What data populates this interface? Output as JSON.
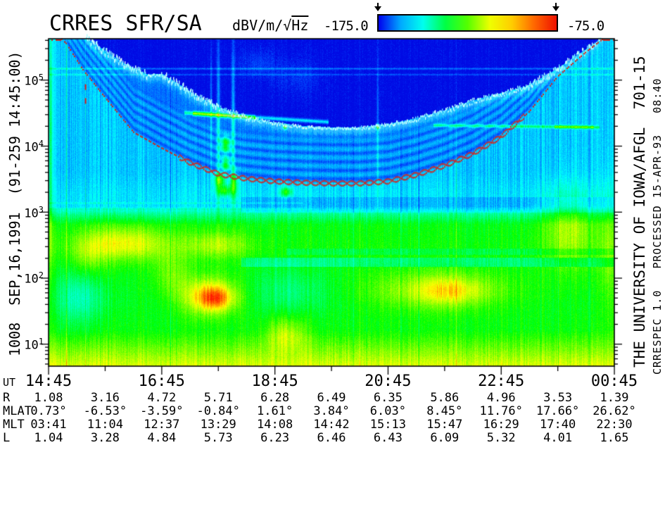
{
  "header": {
    "title": "CRRES SFR/SA",
    "units": {
      "prefix": "dBV/m/",
      "radical": "√",
      "radicand": "Hz"
    },
    "colorbar": {
      "min_label": "-175.0",
      "max_label": "-75.0"
    }
  },
  "side_labels": {
    "left": "1008  SEP,16,1991  (91-259 14:45:00)",
    "right_main": "THE UNIVERSITY OF IOWA/AFGL  701-15",
    "right_sub": "CRRESPEC 1.0   PROCESSED 15-APR-93   08:40"
  },
  "chart_data": {
    "type": "heatmap",
    "title": "CRRES SFR/SA",
    "colorbar": {
      "units": "dBV/m/√Hz",
      "min": -175.0,
      "max": -75.0,
      "gradient": [
        "#0000ee",
        "#00aaff",
        "#00ffee",
        "#00ff44",
        "#55ff00",
        "#eeff00",
        "#ffcc00",
        "#ff6600",
        "#ee1100"
      ]
    },
    "x_axis": {
      "label": "UT",
      "major_ticks": [
        "14:45",
        "16:45",
        "18:45",
        "20:45",
        "22:45",
        "00:45"
      ],
      "span_hours": 10,
      "minor_tick_hours": 1
    },
    "y_axis": {
      "base": "10",
      "scale": "log10",
      "decade_exponents": [
        1,
        2,
        3,
        4,
        5
      ],
      "log_range": [
        0.66,
        5.62
      ],
      "units": "Hz"
    },
    "ephemeris": {
      "rows": [
        {
          "label": "R",
          "values": [
            "1.08",
            "3.16",
            "4.72",
            "5.71",
            "6.28",
            "6.49",
            "6.35",
            "5.86",
            "4.96",
            "3.53",
            "1.39"
          ]
        },
        {
          "label": "MLAT",
          "values": [
            "0.73°",
            "-6.53°",
            "-3.59°",
            "-0.84°",
            "1.61°",
            "3.84°",
            "6.03°",
            "8.45°",
            "11.76°",
            "17.66°",
            "26.62°"
          ]
        },
        {
          "label": "MLT",
          "values": [
            "03:41",
            "11:04",
            "12:37",
            "13:29",
            "14:08",
            "14:42",
            "15:13",
            "15:47",
            "16:29",
            "17:40",
            "22:30"
          ]
        },
        {
          "label": "L",
          "values": [
            "1.04",
            "3.28",
            "4.84",
            "5.73",
            "6.23",
            "6.46",
            "6.43",
            "6.09",
            "5.32",
            "4.01",
            "1.65"
          ]
        }
      ]
    },
    "overlays": {
      "red_dotted_trace": {
        "color": "#d2251d",
        "style": "dotted-braid",
        "braid_t_range": [
          2.3,
          8.4
        ],
        "points_t_logf": [
          [
            0,
            5.8
          ],
          [
            0.3,
            5.55
          ],
          [
            0.6,
            5.15
          ],
          [
            1.0,
            4.72
          ],
          [
            1.5,
            4.2
          ],
          [
            2.0,
            3.96
          ],
          [
            2.5,
            3.74
          ],
          [
            3.0,
            3.57
          ],
          [
            3.5,
            3.5
          ],
          [
            4.0,
            3.46
          ],
          [
            4.5,
            3.44
          ],
          [
            5.0,
            3.43
          ],
          [
            5.5,
            3.43
          ],
          [
            6.0,
            3.46
          ],
          [
            6.5,
            3.56
          ],
          [
            7.0,
            3.7
          ],
          [
            7.5,
            3.88
          ],
          [
            8.0,
            4.14
          ],
          [
            8.5,
            4.52
          ],
          [
            9.0,
            5.05
          ],
          [
            9.5,
            5.42
          ],
          [
            10,
            5.75
          ]
        ]
      },
      "cyan_emission_trace": {
        "color": "#bffcff",
        "style": "jagged-line",
        "points_t_logf": [
          [
            0.6,
            5.72
          ],
          [
            0.66,
            5.62
          ],
          [
            1.0,
            5.42
          ],
          [
            1.3,
            5.25
          ],
          [
            1.5,
            5.16
          ],
          [
            1.75,
            5.06
          ],
          [
            2.0,
            5.07
          ],
          [
            2.3,
            4.92
          ],
          [
            2.6,
            4.75
          ],
          [
            3.0,
            4.57
          ],
          [
            3.5,
            4.42
          ],
          [
            4.0,
            4.33
          ],
          [
            4.5,
            4.28
          ],
          [
            5.0,
            4.26
          ],
          [
            5.5,
            4.26
          ],
          [
            6.0,
            4.31
          ],
          [
            6.5,
            4.4
          ],
          [
            7.0,
            4.52
          ],
          [
            7.5,
            4.67
          ],
          [
            8.0,
            4.78
          ],
          [
            8.5,
            4.9
          ],
          [
            9.0,
            5.15
          ],
          [
            9.3,
            5.33
          ],
          [
            9.6,
            5.5
          ],
          [
            9.8,
            5.62
          ],
          [
            10,
            5.75
          ]
        ]
      }
    },
    "background_profile_logf_intensity": [
      [
        0.66,
        0.72
      ],
      [
        0.95,
        0.6
      ],
      [
        1.2,
        0.5
      ],
      [
        1.6,
        0.48
      ],
      [
        2.05,
        0.49
      ],
      [
        2.42,
        0.51
      ],
      [
        2.8,
        0.49
      ],
      [
        2.95,
        0.37
      ],
      [
        3.08,
        0.23
      ],
      [
        3.25,
        0.23
      ],
      [
        3.6,
        0.2
      ],
      [
        5.8,
        0.2
      ]
    ],
    "spectral_features": {
      "blobs": [
        {
          "t": 1.35,
          "f": 2.52,
          "st": 0.85,
          "sf": 0.26,
          "a": 0.24
        },
        {
          "t": 0.7,
          "f": 2.3,
          "st": 0.3,
          "sf": 0.3,
          "a": 0.1
        },
        {
          "t": 3.0,
          "f": 2.5,
          "st": 0.55,
          "sf": 0.2,
          "a": 0.17
        },
        {
          "t": 2.15,
          "f": 2.05,
          "st": 0.3,
          "sf": 0.35,
          "a": 0.12
        },
        {
          "t": 2.85,
          "f": 1.72,
          "st": 0.52,
          "sf": 0.3,
          "a": 0.3
        },
        {
          "t": 2.95,
          "f": 1.68,
          "st": 0.3,
          "sf": 0.17,
          "a": 0.2
        },
        {
          "t": 6.9,
          "f": 1.8,
          "st": 1.25,
          "sf": 0.3,
          "a": 0.2
        },
        {
          "t": 7.1,
          "f": 1.8,
          "st": 0.55,
          "sf": 0.2,
          "a": 0.12
        },
        {
          "t": 9.2,
          "f": 2.75,
          "st": 0.45,
          "sf": 0.6,
          "a": 0.18
        },
        {
          "t": 9.9,
          "f": 2.4,
          "st": 0.15,
          "sf": 1.0,
          "a": 0.12
        },
        {
          "t": 4.2,
          "f": 1.15,
          "st": 0.35,
          "sf": 0.25,
          "a": 0.18
        },
        {
          "t": 0.55,
          "f": 1.7,
          "st": 0.45,
          "sf": 0.4,
          "a": -0.16
        },
        {
          "t": 4.3,
          "f": 1.8,
          "st": 0.75,
          "sf": 0.35,
          "a": -0.1
        },
        {
          "t": 3.0,
          "f": 4.3,
          "st": 0.03,
          "sf": 1.3,
          "a": 0.16
        },
        {
          "t": 3.26,
          "f": 4.3,
          "st": 0.03,
          "sf": 1.3,
          "a": 0.18
        },
        {
          "t": 2.87,
          "f": 4.6,
          "st": 0.02,
          "sf": 0.9,
          "a": 0.1
        },
        {
          "t": 5.82,
          "f": 4.0,
          "st": 0.02,
          "sf": 1.5,
          "a": 0.12
        },
        {
          "t": 3.13,
          "f": 4.02,
          "st": 0.08,
          "sf": 0.12,
          "a": 0.38
        },
        {
          "t": 3.13,
          "f": 3.72,
          "st": 0.07,
          "sf": 0.1,
          "a": 0.34
        },
        {
          "t": 3.02,
          "f": 3.48,
          "st": 0.09,
          "sf": 0.1,
          "a": 0.36
        },
        {
          "t": 3.27,
          "f": 3.42,
          "st": 0.07,
          "sf": 0.2,
          "a": 0.28
        },
        {
          "t": 3.1,
          "f": 3.32,
          "st": 0.13,
          "sf": 0.08,
          "a": 0.3
        },
        {
          "t": 4.2,
          "f": 3.3,
          "st": 0.1,
          "sf": 0.07,
          "a": 0.3
        },
        {
          "t": 4.18,
          "f": 4.29,
          "st": 0.035,
          "sf": 0.035,
          "a": 0.5
        },
        {
          "t": 5.82,
          "f": 4.29,
          "st": 0.03,
          "sf": 0.035,
          "a": 0.45
        },
        {
          "t": 3.7,
          "f": 5.25,
          "st": 0.35,
          "sf": 0.22,
          "a": 0.05
        },
        {
          "t": 4.4,
          "f": 5.05,
          "st": 0.45,
          "sf": 0.28,
          "a": 0.04
        },
        {
          "t": 0.03,
          "f": 4.0,
          "st": 0.03,
          "sf": 2.0,
          "a": 0.2
        }
      ],
      "bands": [
        {
          "f0": 2.16,
          "f1": 2.3,
          "t0": 3.4,
          "t1": 10,
          "a": -0.12
        },
        {
          "f0": 2.34,
          "f1": 2.44,
          "t0": 4.2,
          "t1": 10,
          "a": -0.07
        },
        {
          "f0": 2.98,
          "f1": 3.22,
          "t0": 3.4,
          "t1": 10,
          "a": -0.05
        }
      ],
      "lines": [
        {
          "f": 5.17,
          "a": 0.1,
          "t0": 0,
          "t1": 10
        },
        {
          "f": 5.08,
          "a": 0.07,
          "t0": 0,
          "t1": 10
        },
        {
          "f": 3.13,
          "a": 0.05,
          "t0": 0,
          "t1": 4.5
        },
        {
          "f": 3.04,
          "a": 0.04,
          "t0": 0,
          "t1": 4.5
        }
      ],
      "streaks": [
        {
          "t0": 2.4,
          "t1": 4.95,
          "f0": 4.5,
          "f1": 4.36,
          "sf": 0.028,
          "a": 0.22,
          "boost": [
            2.55,
            3.65,
            0.33
          ]
        },
        {
          "t0": 6.8,
          "t1": 9.75,
          "f0": 4.31,
          "f1": 4.28,
          "sf": 0.022,
          "a": 0.2,
          "boost": [
            8.95,
            9.65,
            0.22
          ]
        }
      ]
    }
  }
}
